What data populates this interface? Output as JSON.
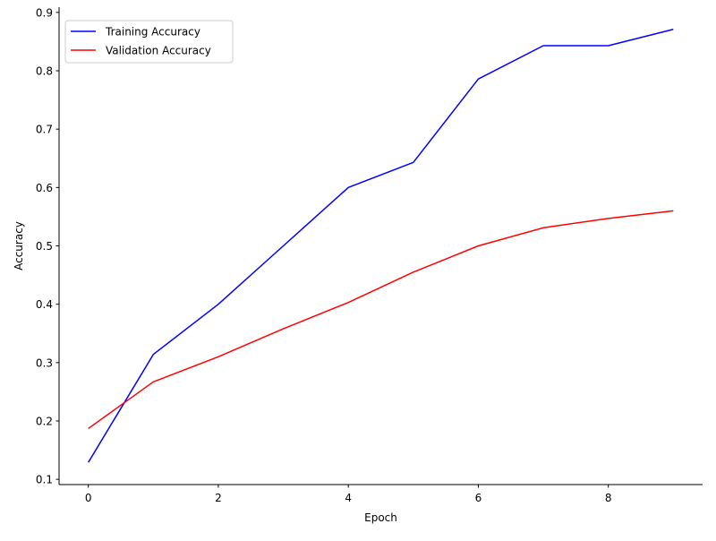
{
  "chart_data": {
    "type": "line",
    "title": "",
    "xlabel": "Epoch",
    "ylabel": "Accuracy",
    "x": [
      0,
      1,
      2,
      3,
      4,
      5,
      6,
      7,
      8,
      9
    ],
    "xlim": [
      -0.45,
      9.45
    ],
    "ylim": [
      0.091,
      0.909
    ],
    "xticks": [
      0,
      2,
      4,
      6,
      8
    ],
    "xtick_labels": [
      "0",
      "2",
      "4",
      "6",
      "8"
    ],
    "yticks": [
      0.1,
      0.2,
      0.3,
      0.4,
      0.5,
      0.6,
      0.7,
      0.8,
      0.9
    ],
    "ytick_labels": [
      "0.1",
      "0.2",
      "0.3",
      "0.4",
      "0.5",
      "0.6",
      "0.7",
      "0.8",
      "0.9"
    ],
    "grid": false,
    "legend_position": "upper-left",
    "series": [
      {
        "name": "Training Accuracy",
        "color": "#0000ff",
        "values": [
          0.129,
          0.314,
          0.4,
          0.5,
          0.6,
          0.643,
          0.786,
          0.843,
          0.843,
          0.871
        ]
      },
      {
        "name": "Validation Accuracy",
        "color": "#ff0000",
        "values": [
          0.187,
          0.267,
          0.31,
          0.358,
          0.403,
          0.455,
          0.5,
          0.531,
          0.547,
          0.56
        ]
      }
    ]
  }
}
